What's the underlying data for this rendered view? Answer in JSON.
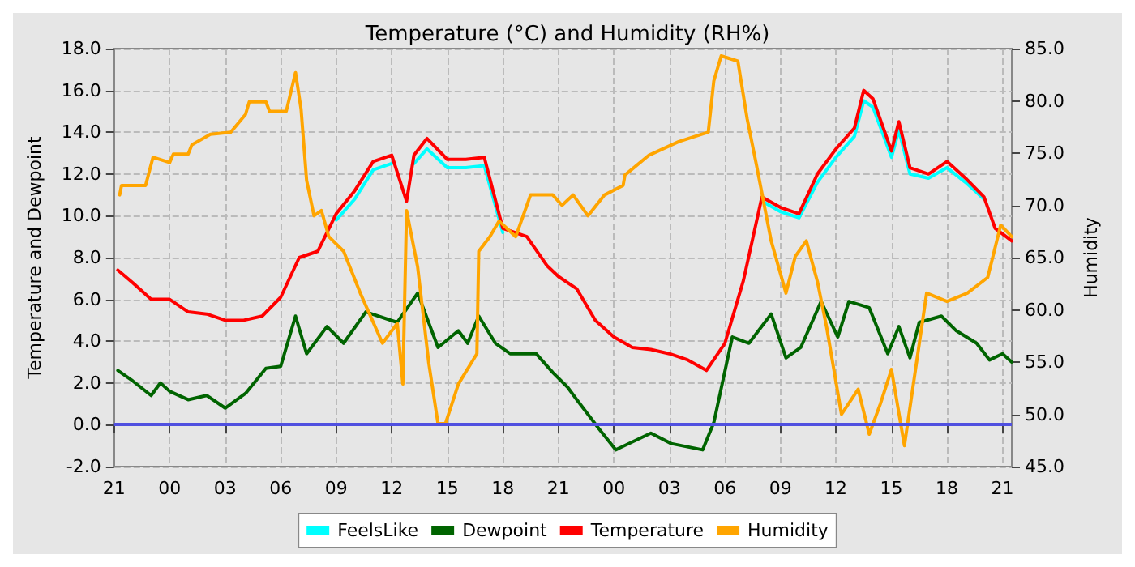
{
  "chart_data": {
    "type": "line",
    "title": "Temperature (°C) and Humidity (RH%)",
    "ylabel": "Temperature and Dewpoint",
    "y2label": "Humidity",
    "xlim": [
      "--01-01T21:00",
      "--01-03T21:30"
    ],
    "xticks": [
      {
        "value": "--01-01T21:00",
        "label": "21"
      },
      {
        "value": "--01-02T00:00",
        "label": "00"
      },
      {
        "value": "--01-02T03:00",
        "label": "03"
      },
      {
        "value": "--01-02T06:00",
        "label": "06"
      },
      {
        "value": "--01-02T09:00",
        "label": "09"
      },
      {
        "value": "--01-02T12:00",
        "label": "12"
      },
      {
        "value": "--01-02T15:00",
        "label": "15"
      },
      {
        "value": "--01-02T18:00",
        "label": "18"
      },
      {
        "value": "--01-02T21:00",
        "label": "21"
      },
      {
        "value": "--01-03T00:00",
        "label": "00"
      },
      {
        "value": "--01-03T03:00",
        "label": "03"
      },
      {
        "value": "--01-03T06:00",
        "label": "06"
      },
      {
        "value": "--01-03T09:00",
        "label": "09"
      },
      {
        "value": "--01-03T12:00",
        "label": "12"
      },
      {
        "value": "--01-03T15:00",
        "label": "15"
      },
      {
        "value": "--01-03T18:00",
        "label": "18"
      },
      {
        "value": "--01-03T21:00",
        "label": "21"
      }
    ],
    "ylim": [
      -2,
      18
    ],
    "yticks": [
      {
        "value": -2,
        "label": "-2.0"
      },
      {
        "value": 0,
        "label": "0.0"
      },
      {
        "value": 2,
        "label": "2.0"
      },
      {
        "value": 4,
        "label": "4.0"
      },
      {
        "value": 6,
        "label": "6.0"
      },
      {
        "value": 8,
        "label": "8.0"
      },
      {
        "value": 10,
        "label": "10.0"
      },
      {
        "value": 12,
        "label": "12.0"
      },
      {
        "value": 14,
        "label": "14.0"
      },
      {
        "value": 16,
        "label": "16.0"
      },
      {
        "value": 18,
        "label": "18.0"
      }
    ],
    "y2lim": [
      45,
      85
    ],
    "y2ticks": [
      {
        "value": 45,
        "label": "45.0"
      },
      {
        "value": 50,
        "label": "50.0"
      },
      {
        "value": 55,
        "label": "55.0"
      },
      {
        "value": 60,
        "label": "60.0"
      },
      {
        "value": 65,
        "label": "65.0"
      },
      {
        "value": 70,
        "label": "70.0"
      },
      {
        "value": 75,
        "label": "75.0"
      },
      {
        "value": 80,
        "label": "80.0"
      },
      {
        "value": 85,
        "label": "85.0"
      }
    ],
    "grid": true,
    "legend": "bottom",
    "marker": "none",
    "line_style": "solid",
    "ref_lines": [
      {
        "axis": "y",
        "value": 0,
        "color": "#5050e0"
      }
    ],
    "series": [
      {
        "name": "FeelsLike",
        "color": "#00ffff",
        "x": [
          "--01-02T09:00",
          "--01-02T10:00",
          "--01-02T11:00",
          "--01-02T12:00",
          "--01-02T12:48",
          "--01-02T13:12",
          "--01-02T13:54",
          "--01-02T15:00",
          "--01-02T16:00",
          "--01-02T17:00",
          "--01-02T18:00",
          "--01-02T19:18",
          "--01-02T20:24",
          "--01-02T21:00",
          "--01-02T22:00",
          "--01-02T23:00",
          "--01-03T00:00",
          "--01-03T01:00",
          "--01-03T02:00",
          "--01-03T03:00",
          "--01-03T04:00",
          "--01-03T05:00",
          "--01-03T06:00",
          "--01-03T07:00",
          "--01-03T08:00",
          "--01-03T09:00",
          "--01-03T10:00",
          "--01-03T11:00",
          "--01-03T12:00",
          "--01-03T13:00",
          "--01-03T13:30",
          "--01-03T14:00",
          "--01-03T15:00",
          "--01-03T15:24",
          "--01-03T16:00",
          "--01-03T17:00",
          "--01-03T18:00",
          "--01-03T19:00",
          "--01-03T20:00"
        ],
        "values": [
          9.8,
          10.8,
          12.2,
          12.5,
          null,
          12.5,
          13.2,
          12.3,
          12.3,
          12.4,
          9.2,
          null,
          null,
          null,
          null,
          null,
          null,
          null,
          null,
          null,
          null,
          null,
          null,
          null,
          10.7,
          10.2,
          9.9,
          11.6,
          12.8,
          13.8,
          15.5,
          15.2,
          12.8,
          14.1,
          12.0,
          11.8,
          12.3,
          11.6,
          10.8
        ]
      },
      {
        "name": "Dewpoint",
        "color": "#006400",
        "x": [
          "--01-01T21:12",
          "--01-01T22:00",
          "--01-01T23:00",
          "--01-01T23:30",
          "--01-02T00:00",
          "--01-02T01:00",
          "--01-02T02:00",
          "--01-02T03:00",
          "--01-02T04:06",
          "--01-02T05:12",
          "--01-02T06:00",
          "--01-02T06:48",
          "--01-02T07:24",
          "--01-02T08:30",
          "--01-02T09:24",
          "--01-02T10:36",
          "--01-02T12:18",
          "--01-02T13:24",
          "--01-02T14:30",
          "--01-02T15:36",
          "--01-02T16:06",
          "--01-02T16:42",
          "--01-02T17:36",
          "--01-02T18:24",
          "--01-02T19:48",
          "--01-02T20:42",
          "--01-02T21:30",
          "--01-02T22:00",
          "--01-02T23:12",
          "--01-03T00:06",
          "--01-03T02:00",
          "--01-03T03:06",
          "--01-03T04:48",
          "--01-03T05:24",
          "--01-03T06:24",
          "--01-03T07:18",
          "--01-03T08:30",
          "--01-03T09:18",
          "--01-03T10:06",
          "--01-03T11:12",
          "--01-03T12:06",
          "--01-03T12:42",
          "--01-03T13:48",
          "--01-03T14:48",
          "--01-03T15:24",
          "--01-03T16:00",
          "--01-03T16:30",
          "--01-03T17:42",
          "--01-03T18:30",
          "--01-03T19:36",
          "--01-03T20:18",
          "--01-03T21:00",
          "--01-03T21:30"
        ],
        "values": [
          2.6,
          2.1,
          1.4,
          2.0,
          1.6,
          1.2,
          1.4,
          0.8,
          1.5,
          2.7,
          2.8,
          5.2,
          3.4,
          4.7,
          3.9,
          5.4,
          4.9,
          6.3,
          3.7,
          4.5,
          3.9,
          5.2,
          3.9,
          3.4,
          3.4,
          2.5,
          1.8,
          1.2,
          -0.2,
          -1.2,
          -0.4,
          -0.9,
          -1.2,
          0.1,
          4.2,
          3.9,
          5.3,
          3.2,
          3.7,
          5.9,
          4.2,
          5.9,
          5.6,
          3.4,
          4.7,
          3.2,
          4.9,
          5.2,
          4.5,
          3.9,
          3.1,
          3.4,
          3.0
        ]
      },
      {
        "name": "Temperature",
        "color": "#ff0000",
        "x": [
          "--01-01T21:12",
          "--01-01T22:00",
          "--01-01T23:00",
          "--01-02T00:00",
          "--01-02T01:00",
          "--01-02T02:00",
          "--01-02T03:00",
          "--01-02T04:00",
          "--01-02T05:00",
          "--01-02T06:00",
          "--01-02T07:00",
          "--01-02T08:00",
          "--01-02T09:00",
          "--01-02T10:00",
          "--01-02T11:00",
          "--01-02T12:00",
          "--01-02T12:48",
          "--01-02T13:12",
          "--01-02T13:54",
          "--01-02T15:00",
          "--01-02T16:00",
          "--01-02T17:00",
          "--01-02T18:00",
          "--01-02T19:18",
          "--01-02T20:24",
          "--01-02T21:00",
          "--01-02T22:00",
          "--01-02T23:00",
          "--01-03T00:00",
          "--01-03T01:00",
          "--01-03T02:00",
          "--01-03T03:00",
          "--01-03T04:00",
          "--01-03T05:00",
          "--01-03T06:00",
          "--01-03T07:00",
          "--01-03T08:00",
          "--01-03T09:00",
          "--01-03T10:00",
          "--01-03T11:00",
          "--01-03T12:00",
          "--01-03T13:00",
          "--01-03T13:30",
          "--01-03T14:00",
          "--01-03T15:00",
          "--01-03T15:24",
          "--01-03T16:00",
          "--01-03T17:00",
          "--01-03T18:00",
          "--01-03T19:00",
          "--01-03T20:00",
          "--01-03T20:36",
          "--01-03T21:30"
        ],
        "values": [
          7.4,
          6.8,
          6.0,
          6.0,
          5.4,
          5.3,
          5.0,
          5.0,
          5.2,
          6.1,
          8.0,
          8.3,
          10.1,
          11.2,
          12.6,
          12.9,
          10.7,
          12.9,
          13.7,
          12.7,
          12.7,
          12.8,
          9.4,
          9.0,
          7.6,
          7.1,
          6.5,
          5.0,
          4.2,
          3.7,
          3.6,
          3.4,
          3.1,
          2.6,
          3.9,
          6.9,
          10.9,
          10.4,
          10.1,
          12.0,
          13.2,
          14.2,
          16.0,
          15.6,
          13.1,
          14.5,
          12.3,
          12.0,
          12.6,
          11.8,
          10.9,
          9.4,
          8.8
        ]
      },
      {
        "name": "Humidity",
        "color": "#ffa500",
        "axis": "y2",
        "x": [
          "--01-01T21:18",
          "--01-01T21:24",
          "--01-01T22:42",
          "--01-01T23:06",
          "--01-02T00:00",
          "--01-02T00:12",
          "--01-02T01:00",
          "--01-02T01:12",
          "--01-02T02:12",
          "--01-02T03:18",
          "--01-02T04:06",
          "--01-02T04:18",
          "--01-02T05:12",
          "--01-02T05:24",
          "--01-02T06:18",
          "--01-02T06:48",
          "--01-02T07:06",
          "--01-02T07:24",
          "--01-02T07:48",
          "--01-02T08:12",
          "--01-02T08:36",
          "--01-02T09:24",
          "--01-02T10:18",
          "--01-02T11:30",
          "--01-02T12:18",
          "--01-02T12:36",
          "--01-02T12:48",
          "--01-02T13:24",
          "--01-02T14:00",
          "--01-02T14:30",
          "--01-02T14:54",
          "--01-02T15:36",
          "--01-02T16:36",
          "--01-02T16:42",
          "--01-02T17:18",
          "--01-02T17:48",
          "--01-02T18:42",
          "--01-02T19:30",
          "--01-02T20:42",
          "--01-02T21:12",
          "--01-02T21:48",
          "--01-02T22:36",
          "--01-02T23:30",
          "--01-03T00:30",
          "--01-03T00:36",
          "--01-03T01:54",
          "--01-03T03:30",
          "--01-03T05:06",
          "--01-03T05:24",
          "--01-03T05:48",
          "--01-03T06:42",
          "--01-03T07:12",
          "--01-03T07:42",
          "--01-03T08:30",
          "--01-03T09:18",
          "--01-03T09:48",
          "--01-03T10:24",
          "--01-03T11:00",
          "--01-03T11:30",
          "--01-03T12:18",
          "--01-03T13:12",
          "--01-03T13:48",
          "--01-03T14:24",
          "--01-03T15:00",
          "--01-03T15:42",
          "--01-03T16:18",
          "--01-03T16:54",
          "--01-03T18:00",
          "--01-03T19:06",
          "--01-03T20:12",
          "--01-03T20:54",
          "--01-03T21:30"
        ],
        "values": [
          71.0,
          71.9,
          71.9,
          74.6,
          74.1,
          74.9,
          74.9,
          75.8,
          76.8,
          77.0,
          78.7,
          79.9,
          79.9,
          79.0,
          79.0,
          82.7,
          79.2,
          72.4,
          69.0,
          69.5,
          67.0,
          65.6,
          61.6,
          56.8,
          58.7,
          52.9,
          69.5,
          64.1,
          54.9,
          49.1,
          49.1,
          52.9,
          55.8,
          65.6,
          67.0,
          68.5,
          67.0,
          71.0,
          71.0,
          70.0,
          71.0,
          69.0,
          71.0,
          71.9,
          72.9,
          74.8,
          76.1,
          77.0,
          81.9,
          84.3,
          83.8,
          78.3,
          73.9,
          66.6,
          61.6,
          65.1,
          66.6,
          62.7,
          58.3,
          50.0,
          52.4,
          48.1,
          51.0,
          54.3,
          47.0,
          54.3,
          61.6,
          60.8,
          61.6,
          63.1,
          68.1,
          67.0
        ]
      }
    ]
  }
}
